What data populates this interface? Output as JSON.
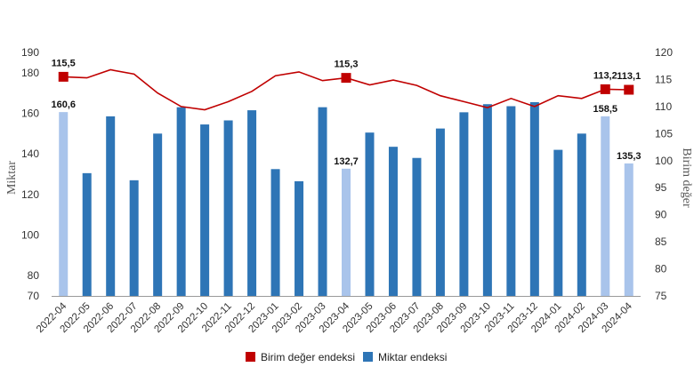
{
  "chart_data": {
    "type": "bar",
    "categories": [
      "2022-04",
      "2022-05",
      "2022-06",
      "2022-07",
      "2022-08",
      "2022-09",
      "2022-10",
      "2022-11",
      "2022-12",
      "2023-01",
      "2023-02",
      "2023-03",
      "2023-04",
      "2023-05",
      "2023-06",
      "2023-07",
      "2023-08",
      "2023-09",
      "2023-10",
      "2023-11",
      "2023-12",
      "2024-01",
      "2024-02",
      "2024-03",
      "2024-04"
    ],
    "series": [
      {
        "name": "Miktar endeksi",
        "type": "bar",
        "axis": "left",
        "color": "#2e75b6",
        "highlight_color": "#a9c4eb",
        "highlighted": [
          "2022-04",
          "2023-04",
          "2024-03",
          "2024-04"
        ],
        "values": [
          160.6,
          130.5,
          158.5,
          127,
          150,
          163,
          154.5,
          156.5,
          161.5,
          132.5,
          126.5,
          163,
          132.7,
          150.5,
          143.5,
          138,
          152.5,
          160.5,
          164.5,
          163.5,
          165.5,
          142,
          150,
          158.5,
          135.3
        ]
      },
      {
        "name": "Birim değer endeksi",
        "type": "line",
        "axis": "right",
        "color": "#c00000",
        "marker_color": "#c00000",
        "marked": [
          "2022-04",
          "2023-04",
          "2024-03",
          "2024-04"
        ],
        "values": [
          115.5,
          115.3,
          116.8,
          116.0,
          112.5,
          110.0,
          109.4,
          110.9,
          112.8,
          115.7,
          116.4,
          114.8,
          115.3,
          114.0,
          114.9,
          113.9,
          112.0,
          110.9,
          109.8,
          111.5,
          110.0,
          112.0,
          111.5,
          113.2,
          113.1
        ]
      }
    ],
    "data_labels": [
      {
        "series": "Birim değer endeksi",
        "category": "2022-04",
        "text": "115,5"
      },
      {
        "series": "Birim değer endeksi",
        "category": "2023-04",
        "text": "115,3"
      },
      {
        "series": "Birim değer endeksi",
        "category": "2024-03",
        "text": "113,2"
      },
      {
        "series": "Birim değer endeksi",
        "category": "2024-04",
        "text": "113,1"
      },
      {
        "series": "Miktar endeksi",
        "category": "2022-04",
        "text": "160,6"
      },
      {
        "series": "Miktar endeksi",
        "category": "2023-04",
        "text": "132,7"
      },
      {
        "series": "Miktar endeksi",
        "category": "2024-03",
        "text": "158,5"
      },
      {
        "series": "Miktar endeksi",
        "category": "2024-04",
        "text": "135,3"
      }
    ],
    "ylabel": "Miktar",
    "y2label": "Birim değer",
    "xlabel": "",
    "ylim": [
      70,
      190
    ],
    "y2lim": [
      75,
      120
    ],
    "yticks": [
      70,
      80,
      100,
      120,
      140,
      160,
      180,
      190
    ],
    "y2ticks": [
      75,
      80,
      85,
      90,
      95,
      100,
      105,
      110,
      115,
      120
    ],
    "grid": false,
    "legend_position": "bottom-center",
    "legend": [
      "Birim değer endeksi",
      "Miktar endeksi"
    ]
  }
}
